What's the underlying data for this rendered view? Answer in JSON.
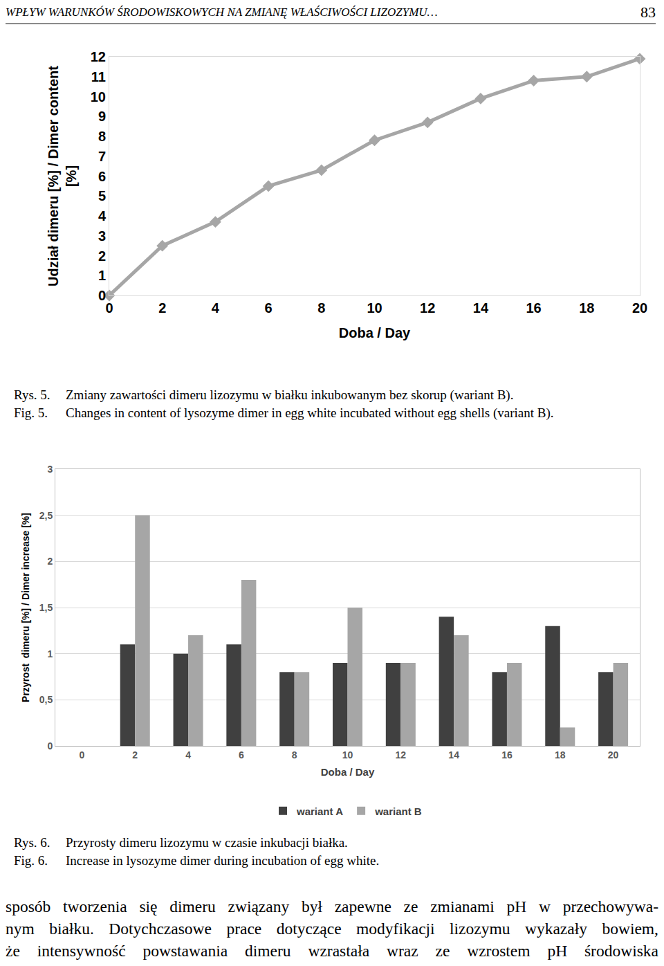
{
  "header": {
    "title": "WPŁYW WARUNKÓW ŚRODOWISKOWYCH NA ZMIANĘ WŁAŚCIWOŚCI LIZOZYMU…",
    "page": "83"
  },
  "chart_data": [
    {
      "type": "line",
      "x": [
        0,
        2,
        4,
        6,
        8,
        10,
        12,
        14,
        16,
        18,
        20
      ],
      "values": [
        0,
        2.5,
        3.7,
        5.5,
        6.3,
        7.8,
        8.7,
        9.9,
        10.8,
        11.0,
        11.9
      ],
      "color": "#a6a6a6",
      "marker": "diamond",
      "xlim": [
        0,
        20
      ],
      "xticks": [
        0,
        2,
        4,
        6,
        8,
        10,
        12,
        14,
        16,
        18,
        20
      ],
      "ylim": [
        0,
        12
      ],
      "yticks": [
        0,
        1,
        2,
        3,
        4,
        5,
        6,
        7,
        8,
        9,
        10,
        11,
        12
      ],
      "x_label": "Doba / Day",
      "y_label": "Udział dimeru [%] / Dimer content [%]",
      "grid": false
    },
    {
      "type": "bar",
      "categories": [
        "0",
        "2",
        "4",
        "6",
        "8",
        "10",
        "12",
        "14",
        "16",
        "18",
        "20"
      ],
      "series": [
        {
          "name": "wariant A",
          "color": "#404040",
          "values": [
            0,
            1.1,
            1.0,
            1.1,
            0.8,
            0.9,
            0.9,
            1.4,
            0.8,
            1.3,
            0.8
          ]
        },
        {
          "name": "wariant B",
          "color": "#a6a6a6",
          "values": [
            0,
            2.5,
            1.2,
            1.8,
            0.8,
            1.5,
            0.9,
            1.2,
            0.9,
            0.2,
            0.9
          ]
        }
      ],
      "ylim": [
        0,
        3
      ],
      "yticks": [
        0,
        {
          "value": 0.5,
          "label": "0,5"
        },
        1,
        {
          "value": 1.5,
          "label": "1,5"
        },
        2,
        {
          "value": 2.5,
          "label": "2,5"
        },
        3
      ],
      "x_label": "Doba / Day",
      "y_label": "Przyrost  dimeru [%] / Dimer increase [%]",
      "grid": true,
      "legend": "bottom"
    }
  ],
  "captions": [
    {
      "pl_label": "Rys. 5.",
      "pl_text": "Zmiany zawartości dimeru lizozymu w białku inkubowanym bez skorup (wariant B).",
      "en_label": "Fig. 5.",
      "en_text": "Changes in content of lysozyme dimer in egg white incubated without egg shells (variant B)."
    },
    {
      "pl_label": "Rys. 6.",
      "pl_text": "Przyrosty dimeru lizozymu w czasie inkubacji białka.",
      "en_label": "Fig. 6.",
      "en_text": "Increase in lysozyme dimer during incubation of egg white."
    }
  ],
  "body": {
    "lines": [
      "sposób tworzenia się dimeru związany był zapewne ze zmianami pH w przechowywa-",
      "nym białku. Dotychczasowe prace dotyczące modyfikacji lizozymu wykazały bowiem,",
      "że intensywność powstawania dimeru wzrastała wraz ze wzrostem pH środowiska"
    ]
  }
}
